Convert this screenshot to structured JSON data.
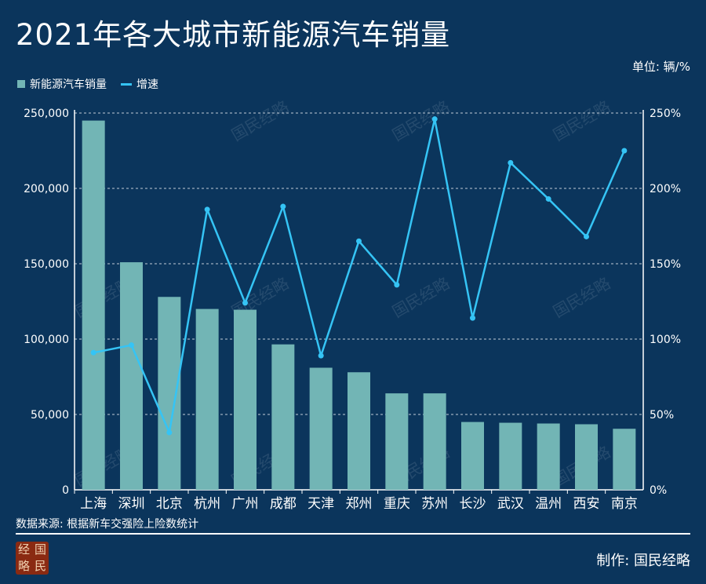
{
  "header": {
    "title": "2021年各大城市新能源汽车销量",
    "unit": "单位: 辆/%"
  },
  "legend": {
    "bar_label": "新能源汽车销量",
    "line_label": "增速"
  },
  "footer": {
    "source": "数据来源: 根据新车交强险上险数统计",
    "credit": "制作: 国民经略",
    "logo_chars": [
      "经",
      "国",
      "略",
      "民"
    ]
  },
  "watermark": "国民经略",
  "colors": {
    "background": "#0b355c",
    "bar": "#72b5b5",
    "line": "#35c4f5",
    "text": "#ffffff"
  },
  "chart_data": {
    "type": "bar",
    "categories": [
      "上海",
      "深圳",
      "北京",
      "杭州",
      "广州",
      "成都",
      "天津",
      "郑州",
      "重庆",
      "苏州",
      "长沙",
      "武汉",
      "温州",
      "西安",
      "南京"
    ],
    "series": [
      {
        "name": "新能源汽车销量",
        "type": "bar",
        "axis": "left",
        "values": [
          245000,
          151000,
          128000,
          120000,
          119500,
          96500,
          81000,
          78000,
          64000,
          64000,
          45000,
          44500,
          44000,
          43500,
          40500
        ]
      },
      {
        "name": "增速",
        "type": "line",
        "axis": "right",
        "values": [
          91,
          96,
          38,
          186,
          124,
          188,
          89,
          165,
          136,
          246,
          114,
          217,
          193,
          168,
          225
        ]
      }
    ],
    "y_left": {
      "min": 0,
      "max": 250000,
      "ticks": [
        0,
        50000,
        100000,
        150000,
        200000,
        250000
      ],
      "tick_labels": [
        "0",
        "50,000",
        "100,000",
        "150,000",
        "200,000",
        "250,000"
      ]
    },
    "y_right": {
      "min": 0,
      "max": 250,
      "ticks": [
        0,
        50,
        100,
        150,
        200,
        250
      ],
      "tick_labels": [
        "0%",
        "50%",
        "100%",
        "150%",
        "200%",
        "250%"
      ]
    },
    "grid": true,
    "legend_position": "top-left"
  }
}
